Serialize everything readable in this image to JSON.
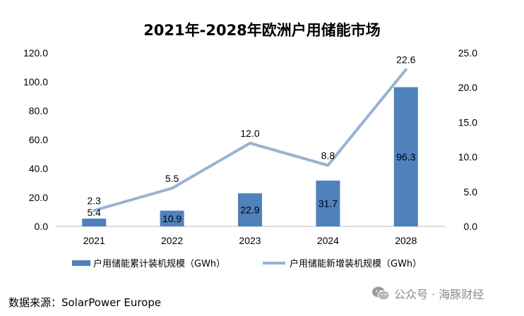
{
  "chart_data": {
    "type": "bar+line",
    "title": "2021年-2028年欧洲户用储能市场",
    "categories": [
      "2021",
      "2022",
      "2023",
      "2024",
      "2028"
    ],
    "series": [
      {
        "name": "户用储能累计装机规模（GWh）",
        "type": "bar",
        "axis": "left",
        "color": "#4f81bd",
        "values": [
          5.4,
          10.9,
          22.9,
          31.7,
          96.3
        ],
        "labels": [
          "5.4",
          "10.9",
          "22.9",
          "31.7",
          "96.3"
        ]
      },
      {
        "name": "户用储能新增装机规模（GWh）",
        "type": "line",
        "axis": "right",
        "color": "#95b3d7",
        "values": [
          2.3,
          5.5,
          12.0,
          8.8,
          22.6
        ],
        "labels": [
          "2.3",
          "5.5",
          "12.0",
          "8.8",
          "22.6"
        ]
      }
    ],
    "y_left": {
      "range": [
        0,
        120
      ],
      "ticks": [
        0,
        20,
        40,
        60,
        80,
        100,
        120
      ],
      "tick_labels": [
        "0.0",
        "20.0",
        "40.0",
        "60.0",
        "80.0",
        "100.0",
        "120.0"
      ]
    },
    "y_right": {
      "range": [
        0,
        25
      ],
      "ticks": [
        0,
        5,
        10,
        15,
        20,
        25
      ],
      "tick_labels": [
        "0.0",
        "5.0",
        "10.0",
        "15.0",
        "20.0",
        "25.0"
      ]
    },
    "grid": false,
    "legend": "bottom"
  },
  "source": "数据来源：SolarPower Europe",
  "watermark": "公众号 · 海豚财经"
}
